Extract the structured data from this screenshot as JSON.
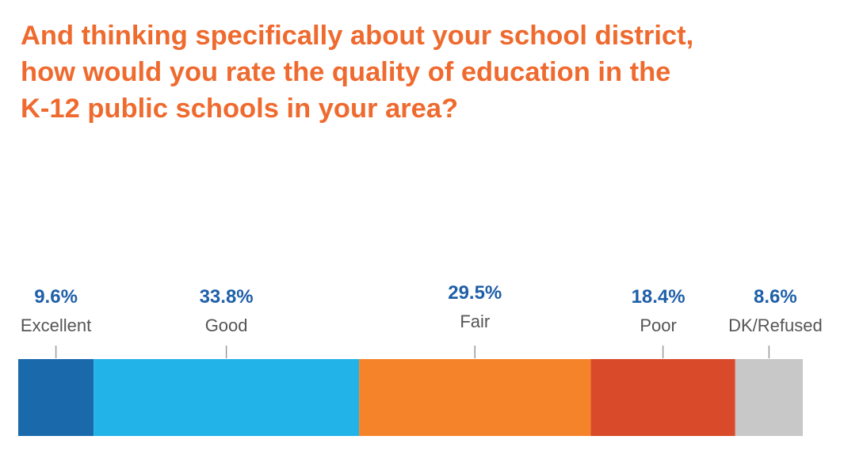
{
  "chart_data": {
    "type": "bar",
    "stacked": true,
    "orientation": "horizontal",
    "title_lines": [
      "And thinking specifically about your school district,",
      "how would you rate the quality of education in the",
      "K-12 public schools in your area?"
    ],
    "categories": [
      "Excellent",
      "Good",
      "Fair",
      "Poor",
      "DK/Refused"
    ],
    "values": [
      9.6,
      33.8,
      29.5,
      18.4,
      8.6
    ],
    "value_labels": [
      "9.6%",
      "33.8%",
      "29.5%",
      "18.4%",
      "8.6%"
    ],
    "colors": [
      "#1a6aab",
      "#22b3e8",
      "#f5832a",
      "#d94a2b",
      "#c8c8c8"
    ],
    "label_color": "#1f5fa8",
    "title_color": "#ef6a2e",
    "legend": "none",
    "grid": false
  }
}
